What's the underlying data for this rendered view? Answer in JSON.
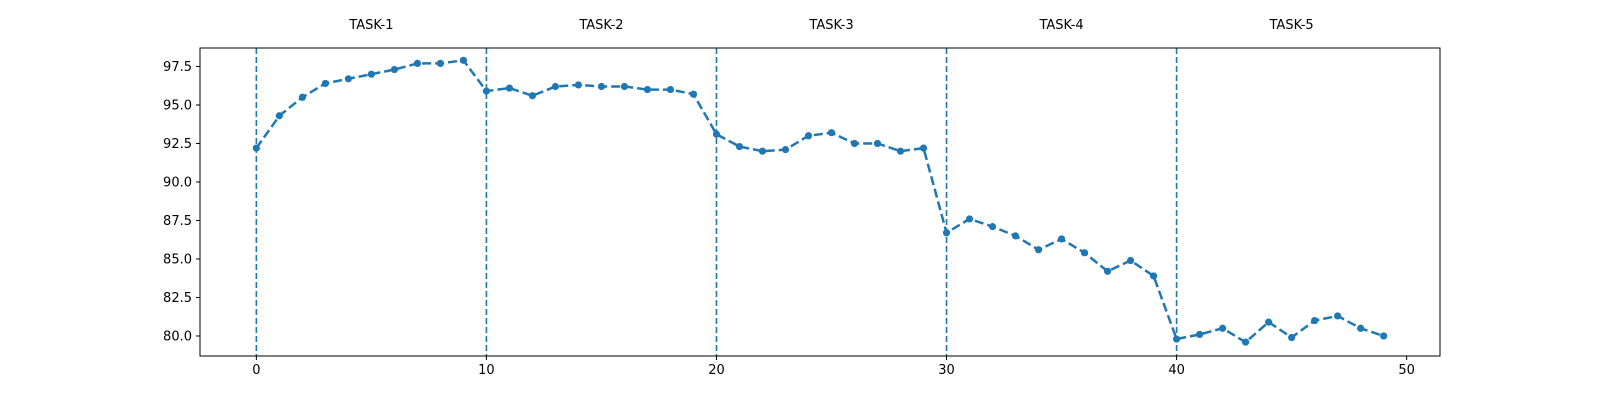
{
  "chart_data": {
    "type": "line",
    "title": "",
    "xlabel": "",
    "ylabel": "",
    "xlim": [
      -2.45,
      51.45
    ],
    "ylim": [
      78.7,
      98.7
    ],
    "grid": false,
    "legend": "none",
    "x_ticks": [
      0,
      10,
      20,
      30,
      40,
      50
    ],
    "y_ticks": [
      80.0,
      82.5,
      85.0,
      87.5,
      90.0,
      92.5,
      95.0,
      97.5
    ],
    "x_tick_labels": [
      "0",
      "10",
      "20",
      "30",
      "40",
      "50"
    ],
    "y_tick_labels": [
      "80.0",
      "82.5",
      "85.0",
      "87.5",
      "90.0",
      "92.5",
      "95.0",
      "97.5"
    ],
    "task_boundaries": [
      0,
      10,
      20,
      30,
      40
    ],
    "tasks": [
      {
        "label": "TASK-1",
        "center": 5
      },
      {
        "label": "TASK-2",
        "center": 15
      },
      {
        "label": "TASK-3",
        "center": 25
      },
      {
        "label": "TASK-4",
        "center": 35
      },
      {
        "label": "TASK-5",
        "center": 45
      }
    ],
    "line_color": "#1f77b4",
    "series": [
      {
        "x": [
          0,
          1,
          2,
          3,
          4,
          5,
          6,
          7,
          8,
          9,
          10,
          11,
          12,
          13,
          14,
          15,
          16,
          17,
          18,
          19,
          20,
          21,
          22,
          23,
          24,
          25,
          26,
          27,
          28,
          29,
          30,
          31,
          32,
          33,
          34,
          35,
          36,
          37,
          38,
          39,
          40,
          41,
          42,
          43,
          44,
          45,
          46,
          47,
          48,
          49
        ],
        "values": [
          92.2,
          94.3,
          95.5,
          96.4,
          96.7,
          97.0,
          97.3,
          97.7,
          97.7,
          97.9,
          95.9,
          96.1,
          95.6,
          96.2,
          96.3,
          96.2,
          96.2,
          96.0,
          96.0,
          95.7,
          93.1,
          92.3,
          92.0,
          92.1,
          93.0,
          93.2,
          92.5,
          92.5,
          92.0,
          92.2,
          86.7,
          87.6,
          87.1,
          86.5,
          85.6,
          86.3,
          85.4,
          84.2,
          84.9,
          83.9,
          79.8,
          80.1,
          80.5,
          79.6,
          80.9,
          79.9,
          81.0,
          81.3,
          80.5,
          80.0
        ]
      }
    ]
  }
}
